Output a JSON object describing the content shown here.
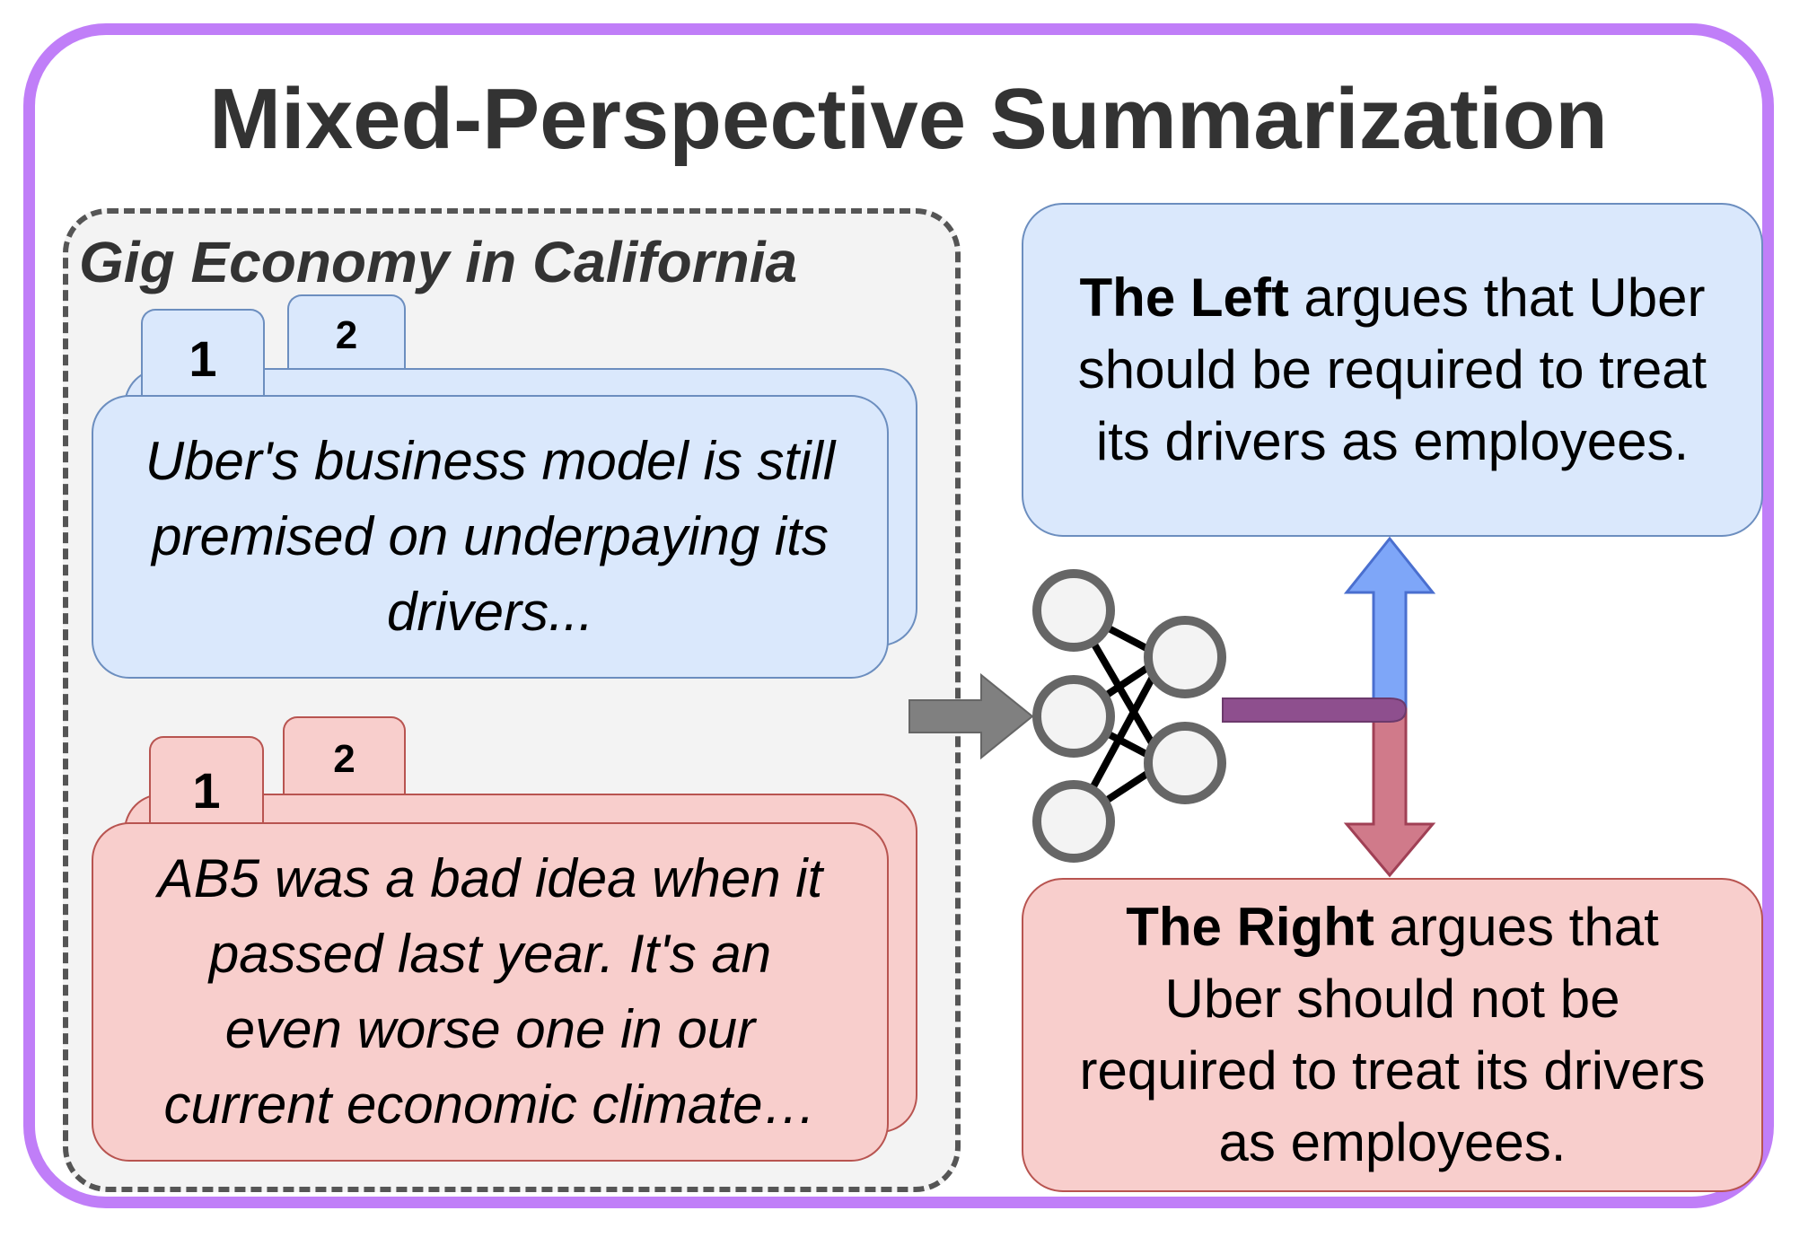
{
  "title": "Mixed-Perspective Summarization",
  "topic": {
    "title": "Gig Economy in California"
  },
  "left_docs": {
    "tab_front": "1",
    "tab_back": "2",
    "text_lines": [
      "Uber's business model is still",
      "premised on underpaying its",
      "drivers..."
    ]
  },
  "right_docs": {
    "tab_front": "1",
    "tab_back": "2",
    "text_lines": [
      "AB5 was a bad idea when it",
      "passed last year. It's an",
      "even worse one in our",
      "current economic climate…"
    ]
  },
  "left_summary": {
    "bold": "The Left",
    "rest_line1": " argues that Uber",
    "line2": "should be required to treat",
    "line3": "its drivers as employees."
  },
  "right_summary": {
    "bold": "The Right",
    "rest_line1": " argues that",
    "line2": "Uber should not be",
    "line3": "required to treat its drivers",
    "line4": "as employees."
  },
  "colors": {
    "frame": "#c07ef8",
    "blue_fill": "#dae8fc",
    "blue_stroke": "#6c8ebf",
    "red_fill": "#f8cecc",
    "red_stroke": "#b85450",
    "arrow_up": "#7ea6f8",
    "arrow_down": "#d07a8a",
    "merge_bar": "#8e4f8e"
  },
  "icons": {
    "model": "neural-network-icon",
    "input_arrow": "arrow-right-icon",
    "up_arrow": "arrow-up-icon",
    "down_arrow": "arrow-down-icon"
  }
}
